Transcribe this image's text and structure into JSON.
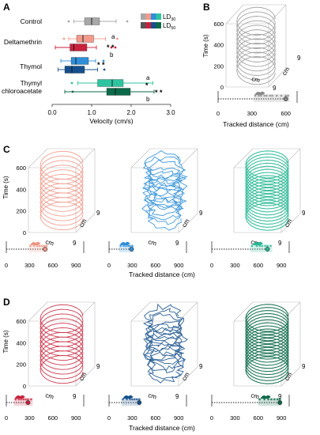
{
  "panels": {
    "A": {
      "letter": "A",
      "groups": [
        "Control",
        "Deltamethrin",
        "Thymol",
        "Thymyl chloroacetate"
      ],
      "xlabel": "Velocity (cm/s)",
      "ticks": [
        "0.0",
        "1.0",
        "2.0",
        "3.0"
      ],
      "legend": [
        {
          "label": "LD",
          "sub": "30",
          "colors": [
            "#a8a8a8",
            "#f39a8c",
            "#2f8fd8",
            "#2ec4a0"
          ]
        },
        {
          "label": "LD",
          "sub": "50",
          "colors": [
            "#555555",
            "#c8223c",
            "#15508c",
            "#0c6a4a"
          ]
        }
      ],
      "sig": {
        "delta30_letter": "a",
        "delta50_letter": "b",
        "delta_stars": "* *",
        "thymol_stars": "* *",
        "tc30_letter": "a",
        "tc50_letter": "b",
        "tc30_star": "*",
        "tc50_stars": "* *"
      }
    },
    "B": {
      "letter": "B",
      "zlabel": "Time (s)",
      "zticks": [
        "0",
        "200",
        "400",
        "600"
      ],
      "cm1": "cm",
      "cm2": "cm",
      "nine1": "9",
      "nine2": "9",
      "xlabel": "Tracked distance (cm)",
      "ticks": [
        "0",
        "300",
        "600"
      ]
    },
    "C": {
      "letter": "C",
      "zlabel": "Time (s)",
      "zticks": [
        "0",
        "200",
        "400",
        "600"
      ],
      "cm": "cm",
      "nine": "9",
      "xlabel": "Tracked distance (cm)",
      "ticks": [
        "0",
        "300",
        "600",
        "900"
      ]
    },
    "D": {
      "letter": "D",
      "zlabel": "Time (s)",
      "zticks": [
        "0",
        "200",
        "400",
        "600"
      ],
      "cm": "cm",
      "nine": "9",
      "xlabel": "Tracked distance (cm)",
      "ticks": [
        "0",
        "300",
        "600",
        "900"
      ]
    }
  },
  "colors": {
    "control": "#9a9a9a",
    "delta30": "#ef9585",
    "delta50": "#c8223c",
    "thymol30": "#2e8fd8",
    "thymol50": "#15508c",
    "tc30": "#27b894",
    "tc50": "#0c6a4a"
  },
  "chart_data": [
    {
      "type": "box",
      "panel": "A",
      "xlabel": "Velocity (cm/s)",
      "xlim": [
        0,
        3.0
      ],
      "series": [
        {
          "group": "Control",
          "min": 0.55,
          "q1": 0.82,
          "median": 1.0,
          "q3": 1.2,
          "max": 1.62,
          "outliers": [
            0.42,
            1.9
          ],
          "color": "#a8a8a8"
        },
        {
          "group": "Deltamethrin",
          "dose": "LD30",
          "min": 0.42,
          "q1": 0.62,
          "median": 0.78,
          "q3": 1.05,
          "max": 1.35,
          "outliers": [
            0.3,
            1.65
          ],
          "color": "#f39a8c"
        },
        {
          "group": "Deltamethrin",
          "dose": "LD50",
          "min": 0.08,
          "q1": 0.45,
          "median": 0.55,
          "q3": 0.88,
          "max": 1.12,
          "outliers": [
            1.5,
            1.6
          ],
          "color": "#c8223c"
        },
        {
          "group": "Thymol",
          "dose": "LD30",
          "min": 0.22,
          "q1": 0.48,
          "median": 0.6,
          "q3": 0.92,
          "max": 1.1,
          "outliers": [
            1.3
          ],
          "color": "#2f8fd8"
        },
        {
          "group": "Thymol",
          "dose": "LD50",
          "min": 0.15,
          "q1": 0.32,
          "median": 0.5,
          "q3": 0.82,
          "max": 1.15,
          "outliers": [
            1.32
          ],
          "color": "#15508c"
        },
        {
          "group": "Thymyl chloroacetate",
          "dose": "LD30",
          "min": 0.65,
          "q1": 1.15,
          "median": 1.52,
          "q3": 1.8,
          "max": 2.55,
          "outliers": [
            0.5
          ],
          "color": "#2ec4a0"
        },
        {
          "group": "Thymyl chloroacetate",
          "dose": "LD50",
          "min": 0.32,
          "q1": 1.38,
          "median": 1.6,
          "q3": 1.98,
          "max": 2.58,
          "outliers": [
            0.52
          ],
          "color": "#0c6a4a"
        }
      ]
    },
    {
      "type": "scatter",
      "panels": [
        "B",
        "C",
        "D"
      ],
      "xlabel": "Tracked distance (cm)",
      "strips": [
        {
          "panel": "B",
          "xlim": [
            0,
            700
          ],
          "mean": 600,
          "points": [
            330,
            360,
            380,
            410,
            430,
            460,
            480,
            520,
            560,
            600,
            620
          ],
          "color": "#888888"
        },
        {
          "panel": "C1",
          "xlim": [
            0,
            1000
          ],
          "mean": 500,
          "points": [
            310,
            360,
            400,
            430,
            460,
            490,
            520
          ],
          "color": "#ef9585"
        },
        {
          "panel": "C2",
          "xlim": [
            0,
            1000
          ],
          "mean": 290,
          "points": [
            150,
            190,
            220,
            250,
            270,
            300
          ],
          "color": "#2e8fd8"
        },
        {
          "panel": "C3",
          "xlim": [
            0,
            1000
          ],
          "mean": 720,
          "points": [
            520,
            580,
            620,
            650,
            690,
            720,
            760
          ],
          "color": "#27b894"
        },
        {
          "panel": "D1",
          "xlim": [
            0,
            1000
          ],
          "mean": 280,
          "points": [
            120,
            160,
            190,
            220,
            250,
            280,
            320
          ],
          "color": "#c8223c"
        },
        {
          "panel": "D2",
          "xlim": [
            0,
            1000
          ],
          "mean": 390,
          "points": [
            180,
            230,
            270,
            300,
            330,
            360,
            390
          ],
          "color": "#15508c"
        },
        {
          "panel": "D3",
          "xlim": [
            0,
            1000
          ],
          "mean": 880,
          "points": [
            620,
            680,
            730,
            770,
            810,
            850,
            880
          ],
          "color": "#0c6a4a"
        }
      ]
    }
  ]
}
